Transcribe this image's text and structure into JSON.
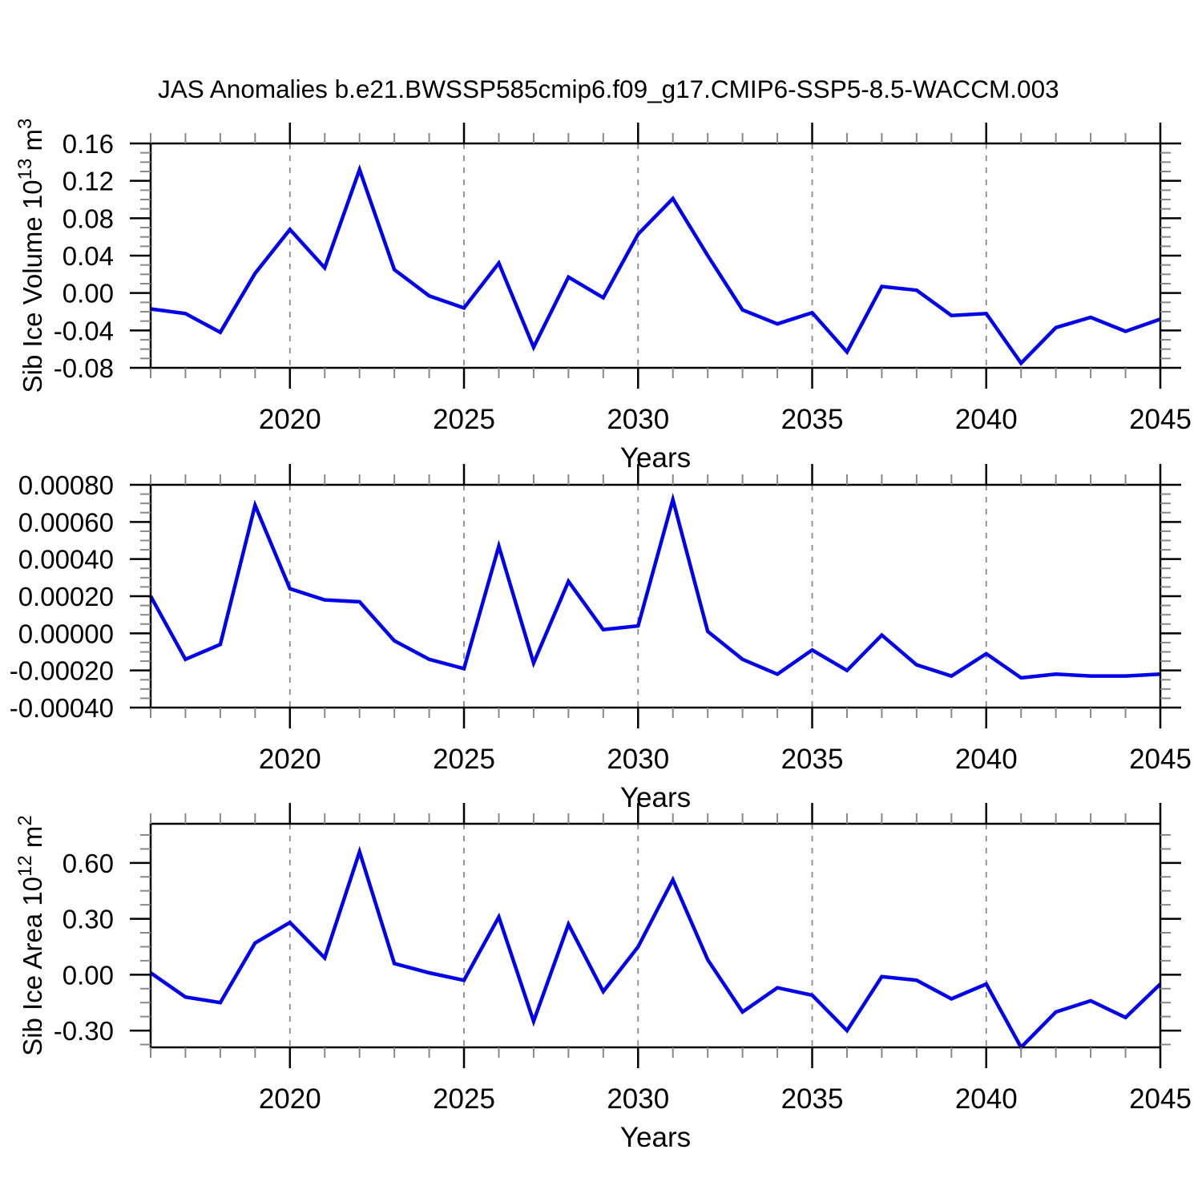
{
  "title": "JAS Anomalies b.e21.BWSSP585cmip6.f09_g17.CMIP6-SSP5-8.5-WACCM.003",
  "colors": {
    "line": "#0000ee",
    "grid": "#8a8a8a",
    "axis": "#000000",
    "minor_tick": "#888888"
  },
  "chart_data": [
    {
      "type": "line",
      "title": "JAS Anomalies b.e21.BWSSP585cmip6.f09_g17.CMIP6-SSP5-8.5-WACCM.003",
      "ylabel": "Sib Ice Volume 10^13 m^3",
      "ylabel_parts": [
        [
          "Sib Ice Volume 10",
          "n"
        ],
        [
          "13",
          "s"
        ],
        [
          " m",
          "n"
        ],
        [
          "3",
          "s"
        ]
      ],
      "xlabel": "Years",
      "xlim": [
        2016,
        2045
      ],
      "ylim": [
        -0.08,
        0.16
      ],
      "grid": "vertical-dashed",
      "legend": "none",
      "x": [
        2016,
        2017,
        2018,
        2019,
        2020,
        2021,
        2022,
        2023,
        2024,
        2025,
        2026,
        2027,
        2028,
        2029,
        2030,
        2031,
        2032,
        2033,
        2034,
        2035,
        2036,
        2037,
        2038,
        2039,
        2040,
        2041,
        2042,
        2043,
        2044,
        2045
      ],
      "values": [
        -0.017,
        -0.022,
        -0.042,
        0.021,
        0.068,
        0.027,
        0.132,
        0.025,
        -0.003,
        -0.016,
        0.032,
        -0.058,
        0.017,
        -0.005,
        0.063,
        0.101,
        0.04,
        -0.018,
        -0.033,
        -0.021,
        -0.063,
        0.007,
        0.003,
        -0.024,
        -0.022,
        -0.075,
        -0.037,
        -0.026,
        -0.041,
        -0.028
      ],
      "yticks": [
        {
          "v": 0.16,
          "label": "0.16"
        },
        {
          "v": 0.12,
          "label": "0.12"
        },
        {
          "v": 0.08,
          "label": "0.08"
        },
        {
          "v": 0.04,
          "label": "0.04"
        },
        {
          "v": 0.0,
          "label": "0.00"
        },
        {
          "v": -0.04,
          "label": "-0.04"
        },
        {
          "v": -0.08,
          "label": "-0.08"
        }
      ],
      "y_minor_step": 0.01,
      "x_major_ticks": [
        2020,
        2025,
        2030,
        2035,
        2040,
        2045
      ],
      "x_gridlines": [
        2020,
        2025,
        2030,
        2035,
        2040
      ],
      "x_minor_step": 1
    },
    {
      "type": "line",
      "title": "",
      "ylabel": "",
      "ylabel_parts": [],
      "xlabel": "Years",
      "xlim": [
        2016,
        2045
      ],
      "ylim": [
        -0.0004,
        0.0008
      ],
      "grid": "vertical-dashed",
      "legend": "none",
      "x": [
        2016,
        2017,
        2018,
        2019,
        2020,
        2021,
        2022,
        2023,
        2024,
        2025,
        2026,
        2027,
        2028,
        2029,
        2030,
        2031,
        2032,
        2033,
        2034,
        2035,
        2036,
        2037,
        2038,
        2039,
        2040,
        2041,
        2042,
        2043,
        2044,
        2045
      ],
      "values": [
        0.0002,
        -0.00014,
        -6e-05,
        0.00069,
        0.00024,
        0.00018,
        0.00017,
        -4e-05,
        -0.00014,
        -0.00019,
        0.00047,
        -0.00016,
        0.00028,
        2e-05,
        4e-05,
        0.00072,
        1e-05,
        -0.00014,
        -0.00022,
        -9e-05,
        -0.0002,
        -1e-05,
        -0.00017,
        -0.00023,
        -0.00011,
        -0.00024,
        -0.00022,
        -0.00023,
        -0.00023,
        -0.00022
      ],
      "yticks": [
        {
          "v": 0.0008,
          "label": "0.00080"
        },
        {
          "v": 0.0006,
          "label": "0.00060"
        },
        {
          "v": 0.0004,
          "label": "0.00040"
        },
        {
          "v": 0.0002,
          "label": "0.00020"
        },
        {
          "v": 0.0,
          "label": "0.00000"
        },
        {
          "v": -0.0002,
          "label": "-0.00020"
        },
        {
          "v": -0.0004,
          "label": "-0.00040"
        }
      ],
      "y_minor_step": 5e-05,
      "x_major_ticks": [
        2020,
        2025,
        2030,
        2035,
        2040,
        2045
      ],
      "x_gridlines": [
        2020,
        2025,
        2030,
        2035,
        2040
      ],
      "x_minor_step": 1
    },
    {
      "type": "line",
      "title": "",
      "ylabel": "Sib Ice Area 10^12 m^2",
      "ylabel_parts": [
        [
          "Sib Ice Area 10",
          "n"
        ],
        [
          "12",
          "s"
        ],
        [
          " m",
          "n"
        ],
        [
          "2",
          "s"
        ]
      ],
      "xlabel": "Years",
      "xlim": [
        2016,
        2045
      ],
      "ylim": [
        -0.39,
        0.81
      ],
      "grid": "vertical-dashed",
      "legend": "none",
      "x": [
        2016,
        2017,
        2018,
        2019,
        2020,
        2021,
        2022,
        2023,
        2024,
        2025,
        2026,
        2027,
        2028,
        2029,
        2030,
        2031,
        2032,
        2033,
        2034,
        2035,
        2036,
        2037,
        2038,
        2039,
        2040,
        2041,
        2042,
        2043,
        2044,
        2045
      ],
      "values": [
        0.01,
        -0.12,
        -0.15,
        0.17,
        0.28,
        0.09,
        0.66,
        0.06,
        0.01,
        -0.03,
        0.31,
        -0.25,
        0.27,
        -0.09,
        0.15,
        0.51,
        0.08,
        -0.2,
        -0.07,
        -0.11,
        -0.3,
        -0.01,
        -0.03,
        -0.13,
        -0.05,
        -0.39,
        -0.2,
        -0.14,
        -0.23,
        -0.05
      ],
      "yticks": [
        {
          "v": 0.6,
          "label": "0.60"
        },
        {
          "v": 0.3,
          "label": "0.30"
        },
        {
          "v": 0.0,
          "label": "0.00"
        },
        {
          "v": -0.3,
          "label": "-0.30"
        }
      ],
      "y_minor_step": 0.075,
      "x_major_ticks": [
        2020,
        2025,
        2030,
        2035,
        2040,
        2045
      ],
      "x_gridlines": [
        2020,
        2025,
        2030,
        2035,
        2040
      ],
      "x_minor_step": 1
    }
  ]
}
